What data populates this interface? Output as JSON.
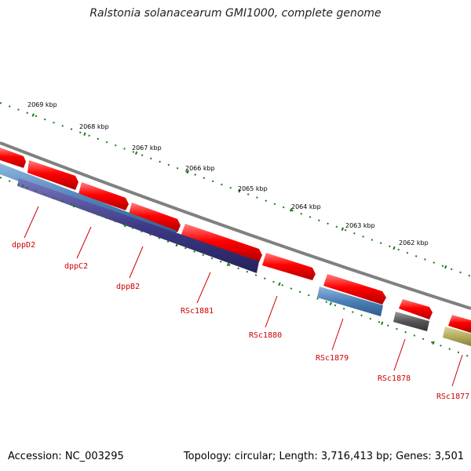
{
  "title": "Ralstonia solanacearum GMI1000, complete genome",
  "footer": {
    "accession": "Accession: NC_003295",
    "summary": "Topology: circular; Length: 3,716,413 bp; Genes: 3,501"
  },
  "ruler": [
    "2069 kbp",
    "2068 kbp",
    "2067 kbp",
    "2066 kbp",
    "2065 kbp",
    "2064 kbp",
    "2063 kbp",
    "2062 kbp"
  ],
  "genes": [
    "dppD2",
    "dppC2",
    "dppB2",
    "RSc1881",
    "RSc1880",
    "RSc1879",
    "RSc1878",
    "RSc1877"
  ],
  "colors": {
    "forward": "#ff0000",
    "reverse_a": "#4a7fb5",
    "reverse_b": "#3e3a86",
    "gray_gene": "#555555",
    "olive_gene": "#b5ac5c",
    "backbone": "#808080",
    "ticks": "#1a7a1a",
    "label": "#cc0000"
  }
}
